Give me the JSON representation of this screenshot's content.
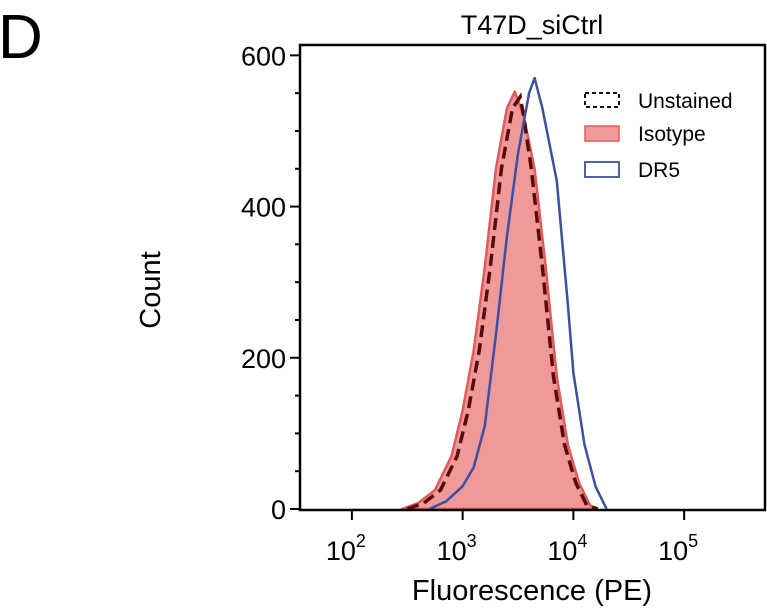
{
  "panel_label": "D",
  "chart_data": {
    "type": "area",
    "title": "T47D_siCtrl",
    "xlabel": "Fluorescence (PE)",
    "ylabel": "Count",
    "xscale": "log",
    "xlim": [
      34,
      537000
    ],
    "ylim": [
      0,
      615
    ],
    "x_ticks": [
      100,
      1000,
      10000,
      100000
    ],
    "x_tick_labels": [
      {
        "base": "10",
        "exp": "2"
      },
      {
        "base": "10",
        "exp": "3"
      },
      {
        "base": "10",
        "exp": "4"
      },
      {
        "base": "10",
        "exp": "5"
      }
    ],
    "y_ticks": [
      0,
      200,
      400,
      600
    ],
    "y_tick_labels": [
      "0",
      "200",
      "400",
      "600"
    ],
    "y_minor_step": 50,
    "grid": false,
    "legend_position": "top-right",
    "series": [
      {
        "name": "Unstained",
        "style": "dashed",
        "color": "#5a0a0a",
        "x": [
          316,
          447,
          631,
          891,
          1122,
          1413,
          1778,
          2239,
          2818,
          3311,
          3548,
          4169,
          5248,
          6607,
          8318,
          10471,
          13183,
          16596
        ],
        "y": [
          0,
          8,
          25,
          70,
          130,
          210,
          320,
          450,
          530,
          545,
          520,
          450,
          320,
          175,
          85,
          35,
          5,
          0
        ]
      },
      {
        "name": "Isotype",
        "style": "filled",
        "color": "#e05c5c",
        "fill": "#ef9a9a",
        "x": [
          282,
          398,
          562,
          794,
          1000,
          1259,
          1585,
          1995,
          2512,
          2951,
          3548,
          4467,
          5623,
          7079,
          8913,
          11220,
          14125,
          15849
        ],
        "y": [
          0,
          8,
          25,
          70,
          130,
          210,
          320,
          450,
          530,
          552,
          520,
          450,
          320,
          175,
          85,
          35,
          5,
          0
        ]
      },
      {
        "name": "DR5",
        "style": "line",
        "color": "#3f4f9e",
        "x": [
          501,
          708,
          1000,
          1259,
          1585,
          1995,
          2512,
          3162,
          3981,
          4467,
          5248,
          7079,
          8913,
          10000,
          12589,
          15849,
          19953
        ],
        "y": [
          0,
          10,
          30,
          55,
          110,
          230,
          360,
          470,
          550,
          570,
          530,
          434,
          270,
          180,
          85,
          30,
          0
        ]
      }
    ]
  }
}
